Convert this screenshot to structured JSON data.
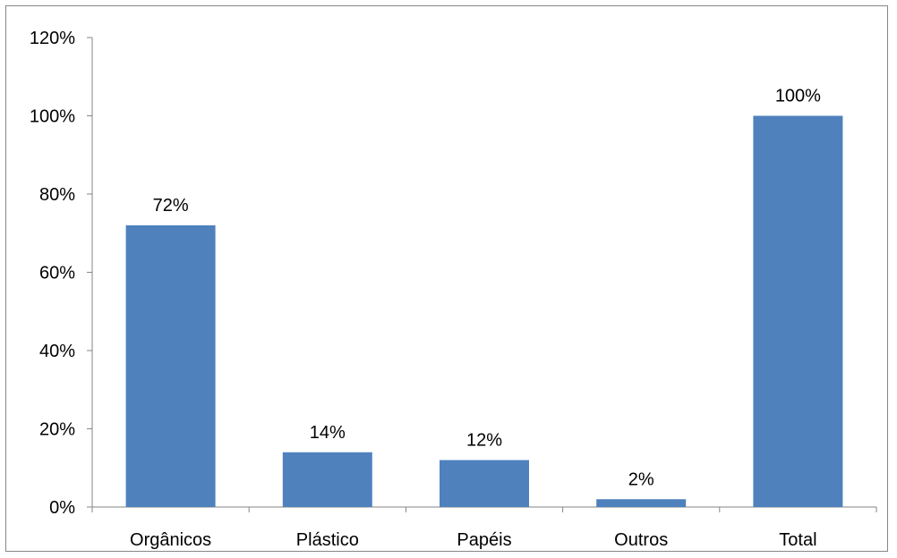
{
  "chart_data": {
    "type": "bar",
    "categories": [
      "Orgânicos",
      "Plástico",
      "Papéis",
      "Outros",
      "Total"
    ],
    "values": [
      72,
      14,
      12,
      2,
      100
    ],
    "data_labels": [
      "72%",
      "14%",
      "12%",
      "2%",
      "100%"
    ],
    "y_ticks": [
      0,
      20,
      40,
      60,
      80,
      100,
      120
    ],
    "y_tick_labels": [
      "0%",
      "20%",
      "40%",
      "60%",
      "80%",
      "100%",
      "120%"
    ],
    "ylim": [
      0,
      120
    ],
    "title": "",
    "xlabel": "",
    "ylabel": "",
    "grid": false,
    "legend": "none",
    "bar_color": "#4F81BD",
    "axis_color": "#868686"
  }
}
